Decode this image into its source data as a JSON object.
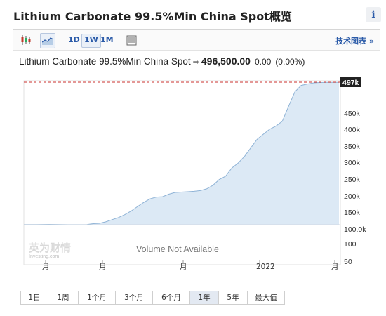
{
  "header": {
    "title": "Lithium Carbonate 99.5%Min China Spot概览",
    "info_label": "i"
  },
  "toolbar": {
    "timeframes": [
      "1D",
      "1W",
      "1M"
    ],
    "active_timeframe": "1W",
    "tech_chart_link": "技术图表 »"
  },
  "quote": {
    "name": "Lithium Carbonate 99.5%Min China Spot",
    "arrow": "➡",
    "price": "496,500.00",
    "change": "0.00",
    "change_pct": "(0.00%)"
  },
  "chart_data": {
    "type": "area",
    "y_ticks": [
      "497k",
      "450k",
      "400k",
      "350k",
      "300k",
      "250k",
      "200k",
      "150k",
      "100.0k",
      "100",
      "50"
    ],
    "x_ticks": [
      "月",
      "月",
      "月",
      "2022",
      "月"
    ],
    "last_price_label": "497k",
    "last_price": 497000,
    "volume_note": "Volume Not Available",
    "watermark": "英为财情",
    "watermark_sub": "Investing.com",
    "series": [
      {
        "values": [
          100500,
          100500,
          100500,
          100800,
          101000,
          100800,
          100500,
          100200,
          100200,
          100200,
          100500,
          103000,
          104000,
          108000,
          114000,
          120000,
          128000,
          138000,
          150000,
          162000,
          172000,
          177000,
          178000,
          185000,
          190000,
          191000,
          192000,
          193000,
          195000,
          200000,
          210000,
          226000,
          235000,
          258000,
          272000,
          290000,
          314000,
          338000,
          352000,
          366000,
          375000,
          388000,
          430000,
          470000,
          488000,
          492000,
          495000,
          496000,
          496500,
          496500,
          496500
        ]
      }
    ]
  },
  "range_buttons": [
    "1日",
    "1周",
    "1个月",
    "3个月",
    "6个月",
    "1年",
    "5年",
    "最大值"
  ],
  "active_range": "1年",
  "colors": {
    "area_fill": "#dce9f5",
    "line": "#8fb3d6",
    "last_price_line": "#c9302c",
    "price_tag_bg": "#222222",
    "link_blue": "#2a5aa8"
  }
}
